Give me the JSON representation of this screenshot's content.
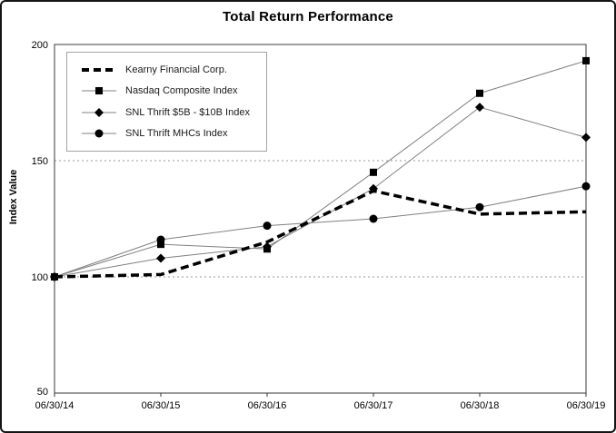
{
  "window": {
    "background_color": "#ffffff",
    "frame_border_color": "#141414"
  },
  "chart_data": {
    "type": "line",
    "title": "Total Return Performance",
    "xlabel": "",
    "ylabel": "Index Value",
    "ylim": [
      50,
      200
    ],
    "yticks": [
      50,
      100,
      150,
      200
    ],
    "grid": "dotted horizontal gridlines at 100, 150, 200",
    "legend_position": "top-left inside plot area",
    "plot_border_color": "#595959",
    "gridline_color": "#9a9a9a",
    "categories": [
      "06/30/14",
      "06/30/15",
      "06/30/16",
      "06/30/17",
      "06/30/18",
      "06/30/19"
    ],
    "series": [
      {
        "name": "Kearny Financial Corp.",
        "marker": "none",
        "line_style": "thick-dashed",
        "color": "#000000",
        "marker_color": "#000000",
        "values": [
          100,
          101,
          115,
          137,
          127,
          128
        ]
      },
      {
        "name": "Nasdaq Composite Index",
        "marker": "square",
        "line_style": "thin-solid",
        "color": "#808080",
        "marker_color": "#000000",
        "values": [
          100,
          114,
          112,
          145,
          179,
          193
        ]
      },
      {
        "name": "SNL Thrift $5B - $10B Index",
        "marker": "diamond",
        "line_style": "thin-solid",
        "color": "#808080",
        "marker_color": "#000000",
        "values": [
          100,
          108,
          113,
          138,
          173,
          160
        ]
      },
      {
        "name": "SNL Thrift MHCs Index",
        "marker": "circle",
        "line_style": "thin-solid",
        "color": "#808080",
        "marker_color": "#000000",
        "values": [
          100,
          116,
          122,
          125,
          130,
          139
        ]
      }
    ]
  }
}
